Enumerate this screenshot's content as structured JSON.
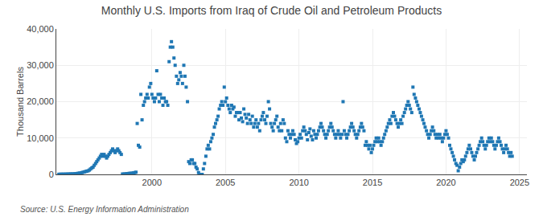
{
  "chart_data": {
    "type": "scatter",
    "title": "Monthly U.S. Imports from Iraq of Crude Oil and Petroleum Products",
    "ylabel": "Thousand Barrels",
    "annotations": [
      "Source: U.S. Energy Information Administration"
    ],
    "marker": "square",
    "grid": true,
    "xlim": [
      1993.5,
      2025.5
    ],
    "xticks": [
      2000,
      2005,
      2010,
      2015,
      2020,
      2025
    ],
    "ylim": [
      0,
      40000
    ],
    "yticks": [
      0,
      {
        "value": 10000,
        "label": "10,000"
      },
      {
        "value": 20000,
        "label": "20,000"
      },
      {
        "value": 30000,
        "label": "30,000"
      },
      {
        "value": 40000,
        "label": "40,000"
      }
    ],
    "x": [
      1993.67,
      1993.75,
      1993.83,
      1993.92,
      1994.0,
      1994.08,
      1994.17,
      1994.25,
      1994.33,
      1994.42,
      1994.5,
      1994.58,
      1994.67,
      1994.75,
      1994.83,
      1994.92,
      1995.0,
      1995.08,
      1995.17,
      1995.25,
      1995.33,
      1995.42,
      1995.5,
      1995.58,
      1995.67,
      1995.75,
      1995.83,
      1995.92,
      1996.0,
      1996.08,
      1996.17,
      1996.25,
      1996.33,
      1996.42,
      1996.5,
      1996.58,
      1996.67,
      1996.75,
      1996.83,
      1996.92,
      1997.0,
      1997.08,
      1997.17,
      1997.25,
      1997.33,
      1997.42,
      1997.5,
      1997.58,
      1997.67,
      1997.75,
      1997.83,
      1997.92,
      1998.0,
      1998.08,
      1998.17,
      1998.25,
      1998.33,
      1998.42,
      1998.5,
      1998.58,
      1998.67,
      1998.75,
      1998.83,
      1998.92,
      1999.0,
      1999.08,
      1999.17,
      1999.25,
      1999.33,
      1999.42,
      1999.5,
      1999.58,
      1999.67,
      1999.75,
      1999.83,
      1999.92,
      2000.0,
      2000.08,
      2000.17,
      2000.25,
      2000.33,
      2000.42,
      2000.5,
      2000.58,
      2000.67,
      2000.75,
      2000.83,
      2000.92,
      2001.0,
      2001.08,
      2001.17,
      2001.25,
      2001.33,
      2001.42,
      2001.5,
      2001.58,
      2001.67,
      2001.75,
      2001.83,
      2001.92,
      2002.0,
      2002.08,
      2002.17,
      2002.25,
      2002.33,
      2002.42,
      2002.5,
      2002.58,
      2002.67,
      2002.75,
      2002.83,
      2002.92,
      2003.0,
      2003.08,
      2003.17,
      2003.25,
      2003.33,
      2003.42,
      2003.5,
      2003.58,
      2003.67,
      2003.75,
      2003.83,
      2003.92,
      2004.0,
      2004.08,
      2004.17,
      2004.25,
      2004.33,
      2004.42,
      2004.5,
      2004.58,
      2004.67,
      2004.75,
      2004.83,
      2004.92,
      2005.0,
      2005.08,
      2005.17,
      2005.25,
      2005.33,
      2005.42,
      2005.5,
      2005.58,
      2005.67,
      2005.75,
      2005.83,
      2005.92,
      2006.0,
      2006.08,
      2006.17,
      2006.25,
      2006.33,
      2006.42,
      2006.5,
      2006.58,
      2006.67,
      2006.75,
      2006.83,
      2006.92,
      2007.0,
      2007.08,
      2007.17,
      2007.25,
      2007.33,
      2007.42,
      2007.5,
      2007.58,
      2007.67,
      2007.75,
      2007.83,
      2007.92,
      2008.0,
      2008.08,
      2008.17,
      2008.25,
      2008.33,
      2008.42,
      2008.5,
      2008.58,
      2008.67,
      2008.75,
      2008.83,
      2008.92,
      2009.0,
      2009.08,
      2009.17,
      2009.25,
      2009.33,
      2009.42,
      2009.5,
      2009.58,
      2009.67,
      2009.75,
      2009.83,
      2009.92,
      2010.0,
      2010.08,
      2010.17,
      2010.25,
      2010.33,
      2010.42,
      2010.5,
      2010.58,
      2010.67,
      2010.75,
      2010.83,
      2010.92,
      2011.0,
      2011.08,
      2011.17,
      2011.25,
      2011.33,
      2011.42,
      2011.5,
      2011.58,
      2011.67,
      2011.75,
      2011.83,
      2011.92,
      2012.0,
      2012.08,
      2012.17,
      2012.25,
      2012.33,
      2012.42,
      2012.5,
      2012.58,
      2012.67,
      2012.75,
      2012.83,
      2012.92,
      2013.0,
      2013.08,
      2013.17,
      2013.25,
      2013.33,
      2013.42,
      2013.5,
      2013.58,
      2013.67,
      2013.75,
      2013.83,
      2013.92,
      2014.0,
      2014.08,
      2014.17,
      2014.25,
      2014.33,
      2014.42,
      2014.5,
      2014.58,
      2014.67,
      2014.75,
      2014.83,
      2014.92,
      2015.0,
      2015.08,
      2015.17,
      2015.25,
      2015.33,
      2015.42,
      2015.5,
      2015.58,
      2015.67,
      2015.75,
      2015.83,
      2015.92,
      2016.0,
      2016.08,
      2016.17,
      2016.25,
      2016.33,
      2016.42,
      2016.5,
      2016.58,
      2016.67,
      2016.75,
      2016.83,
      2016.92,
      2017.0,
      2017.08,
      2017.17,
      2017.25,
      2017.33,
      2017.42,
      2017.5,
      2017.58,
      2017.67,
      2017.75,
      2017.83,
      2017.92,
      2018.0,
      2018.08,
      2018.17,
      2018.25,
      2018.33,
      2018.42,
      2018.5,
      2018.58,
      2018.67,
      2018.75,
      2018.83,
      2018.92,
      2019.0,
      2019.08,
      2019.17,
      2019.25,
      2019.33,
      2019.42,
      2019.5,
      2019.58,
      2019.67,
      2019.75,
      2019.83,
      2019.92,
      2020.0,
      2020.08,
      2020.17,
      2020.25,
      2020.33,
      2020.42,
      2020.5,
      2020.58,
      2020.67,
      2020.75,
      2020.83,
      2020.92,
      2021.0,
      2021.08,
      2021.17,
      2021.25,
      2021.33,
      2021.42,
      2021.5,
      2021.58,
      2021.67,
      2021.75,
      2021.83,
      2021.92,
      2022.0,
      2022.08,
      2022.17,
      2022.25,
      2022.33,
      2022.42,
      2022.5,
      2022.58,
      2022.67,
      2022.75,
      2022.83,
      2022.92,
      2023.0,
      2023.08,
      2023.17,
      2023.25,
      2023.33,
      2023.42,
      2023.5,
      2023.58,
      2023.67,
      2023.75,
      2023.83,
      2023.92,
      2024.0,
      2024.08,
      2024.17,
      2024.25,
      2024.33,
      2024.42,
      2024.5
    ],
    "values": [
      30,
      40,
      50,
      60,
      50,
      60,
      80,
      70,
      90,
      100,
      120,
      110,
      130,
      150,
      200,
      250,
      300,
      350,
      400,
      500,
      600,
      700,
      800,
      900,
      1000,
      1200,
      1500,
      1800,
      2000,
      2500,
      3000,
      3500,
      4000,
      4500,
      5000,
      5500,
      5000,
      5500,
      5000,
      4500,
      5000,
      5500,
      6000,
      6500,
      7000,
      6500,
      6000,
      6500,
      7000,
      6500,
      6000,
      5500,
      100,
      80,
      120,
      150,
      200,
      250,
      300,
      280,
      350,
      400,
      500,
      600,
      14000,
      8000,
      7500,
      22000,
      15000,
      19000,
      20000,
      21000,
      22000,
      21000,
      24000,
      25000,
      22000,
      21000,
      20000,
      21000,
      28500,
      22000,
      20000,
      22000,
      21000,
      19000,
      21000,
      20000,
      20000,
      19000,
      31000,
      35000,
      36500,
      35000,
      32000,
      30000,
      27000,
      25000,
      26000,
      28000,
      27000,
      25000,
      30000,
      27000,
      24000,
      20000,
      3500,
      3000,
      4000,
      4000,
      3000,
      3000,
      2000,
      1500,
      500,
      0,
      0,
      0,
      1500,
      3000,
      5000,
      7000,
      8000,
      7000,
      9000,
      10000,
      11000,
      13000,
      14000,
      15000,
      16000,
      18000,
      19000,
      20000,
      19000,
      24000,
      20000,
      21000,
      19000,
      18000,
      17000,
      19000,
      18000,
      18500,
      16000,
      17000,
      17000,
      15000,
      17000,
      15500,
      14500,
      18000,
      16500,
      15500,
      14000,
      16500,
      15000,
      14000,
      16000,
      13000,
      14000,
      15000,
      13000,
      14000,
      12000,
      15000,
      16000,
      17000,
      15000,
      14000,
      16000,
      20000,
      18000,
      14000,
      13000,
      12000,
      14000,
      15000,
      16000,
      13000,
      12000,
      14000,
      12000,
      15000,
      14000,
      10000,
      9000,
      12000,
      11000,
      10000,
      11000,
      12000,
      11000,
      9500,
      8500,
      9000,
      10000,
      11000,
      10000,
      12000,
      13000,
      12000,
      11000,
      9500,
      11500,
      12500,
      10500,
      9500,
      12000,
      11000,
      10000,
      11000,
      12000,
      13000,
      14000,
      13000,
      12000,
      11000,
      10000,
      11000,
      12000,
      13000,
      14000,
      13000,
      12000,
      11000,
      10000,
      11000,
      12000,
      11000,
      10000,
      11000,
      20000,
      12000,
      11000,
      10000,
      11000,
      12000,
      13000,
      14000,
      13000,
      12000,
      11000,
      10000,
      11000,
      12000,
      13000,
      14000,
      13000,
      12000,
      8000,
      9000,
      8000,
      7000,
      8000,
      6000,
      7000,
      8000,
      9000,
      10000,
      9000,
      10000,
      9000,
      8000,
      9000,
      10000,
      11000,
      12000,
      13000,
      14000,
      15000,
      14000,
      16000,
      17000,
      16000,
      15000,
      14000,
      13000,
      14000,
      15000,
      14000,
      16000,
      17000,
      18000,
      19000,
      20000,
      19000,
      18000,
      17000,
      24000,
      22000,
      21000,
      20000,
      19000,
      18000,
      17000,
      16000,
      15000,
      14000,
      13000,
      12000,
      11000,
      10000,
      11000,
      12000,
      13000,
      12000,
      11000,
      10000,
      11000,
      10000,
      11000,
      10000,
      9000,
      10000,
      11000,
      12000,
      11000,
      10000,
      8000,
      7000,
      6000,
      5000,
      4000,
      3000,
      2500,
      1000,
      2000,
      3000,
      4000,
      3500,
      4000,
      5000,
      6000,
      7000,
      8000,
      7000,
      6000,
      5000,
      4000,
      5000,
      6000,
      7000,
      8000,
      9000,
      10000,
      9000,
      8000,
      7000,
      8000,
      9000,
      10000,
      9000,
      10000,
      9000,
      8000,
      7000,
      8000,
      9000,
      10000,
      9000,
      8000,
      7000,
      6000,
      7000,
      8000,
      7000,
      6000,
      5000,
      6000,
      5000
    ]
  }
}
